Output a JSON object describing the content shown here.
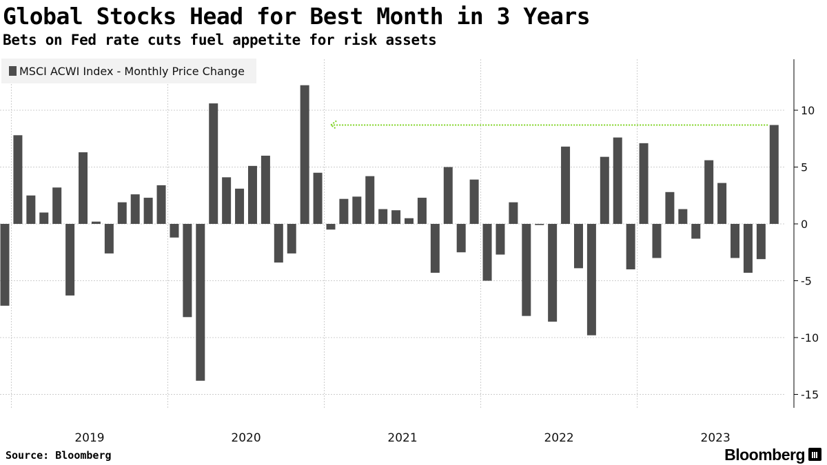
{
  "title": "Global Stocks Head for Best Month in 3 Years",
  "subtitle": "Bets on Fed rate cuts fuel appetite for risk assets",
  "legend_label": "MSCI ACWI Index - Monthly Price Change",
  "source": "Source: Bloomberg",
  "brand": "Bloomberg",
  "colors": {
    "bar": "#4d4d4d",
    "grid": "#cccccc",
    "annotation": "#7ed321"
  },
  "chart_data": {
    "type": "bar",
    "series": [
      {
        "name": "MSCI ACWI Index - Monthly Price Change",
        "months": [
          "2018-12",
          "2019-01",
          "2019-02",
          "2019-03",
          "2019-04",
          "2019-05",
          "2019-06",
          "2019-07",
          "2019-08",
          "2019-09",
          "2019-10",
          "2019-11",
          "2019-12",
          "2020-01",
          "2020-02",
          "2020-03",
          "2020-04",
          "2020-05",
          "2020-06",
          "2020-07",
          "2020-08",
          "2020-09",
          "2020-10",
          "2020-11",
          "2020-12",
          "2021-01",
          "2021-02",
          "2021-03",
          "2021-04",
          "2021-05",
          "2021-06",
          "2021-07",
          "2021-08",
          "2021-09",
          "2021-10",
          "2021-11",
          "2021-12",
          "2022-01",
          "2022-02",
          "2022-03",
          "2022-04",
          "2022-05",
          "2022-06",
          "2022-07",
          "2022-08",
          "2022-09",
          "2022-10",
          "2022-11",
          "2022-12",
          "2023-01",
          "2023-02",
          "2023-03",
          "2023-04",
          "2023-05",
          "2023-06",
          "2023-07",
          "2023-08",
          "2023-09",
          "2023-10",
          "2023-11"
        ],
        "values": [
          -7.2,
          7.8,
          2.5,
          1.0,
          3.2,
          -6.3,
          6.3,
          0.2,
          -2.6,
          1.9,
          2.6,
          2.3,
          3.4,
          -1.2,
          -8.2,
          -13.8,
          10.6,
          4.1,
          3.1,
          5.1,
          6.0,
          -3.4,
          -2.6,
          12.2,
          4.5,
          -0.5,
          2.2,
          2.4,
          4.2,
          1.3,
          1.2,
          0.5,
          2.3,
          -4.3,
          5.0,
          -2.5,
          3.9,
          -5.0,
          -2.7,
          1.9,
          -8.1,
          -0.1,
          -8.6,
          6.8,
          -3.9,
          -9.8,
          5.9,
          7.6,
          -4.0,
          7.1,
          -3.0,
          2.8,
          1.3,
          -1.3,
          5.6,
          3.6,
          -3.0,
          -4.3,
          -3.1,
          8.7
        ]
      }
    ],
    "x_tick_labels": [
      "2019",
      "2020",
      "2021",
      "2022",
      "2023"
    ],
    "y_ticks": [
      10,
      5,
      0,
      -5,
      -10,
      -15
    ],
    "y_tick_labels": [
      "10",
      "5",
      "0",
      "-5",
      "-10",
      "-15"
    ],
    "ylim": [
      -15.5,
      14.5
    ],
    "y_axis_side": "right",
    "grid": true,
    "legend_position": "top-left",
    "annotation": {
      "type": "dotted-arrow",
      "level": 8.7,
      "from_month": "2023-11",
      "to_month": "2020-11"
    }
  }
}
